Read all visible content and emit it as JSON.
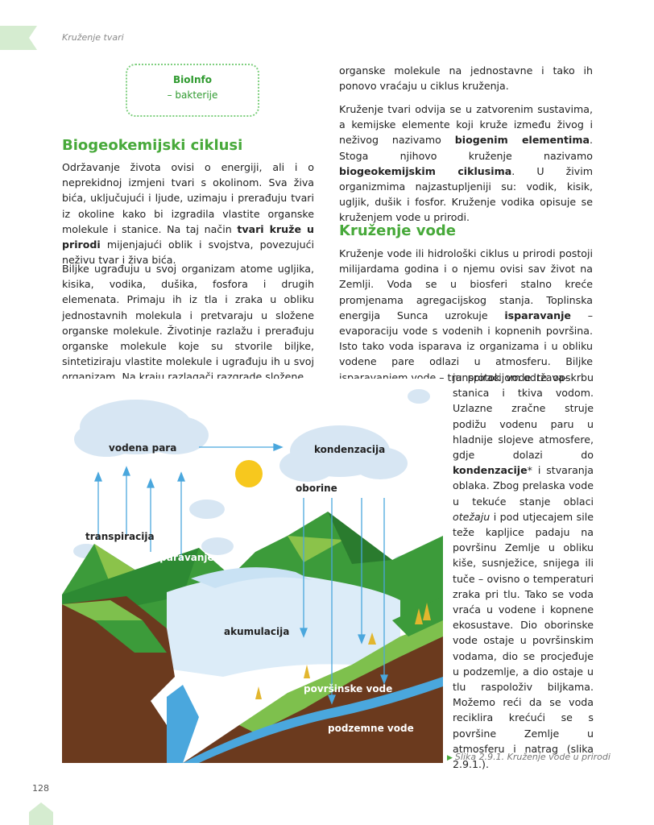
{
  "header": {
    "running_head": "Kruženje tvari"
  },
  "bioinfo": {
    "title": "BioInfo",
    "subtitle": "– bakterije"
  },
  "section1": {
    "title": "Biogeokemijski ciklusi",
    "p1_a": "Održavanje života ovisi o energiji, ali i o neprekidnoj izmjeni tvari s okolinom. Sva živa bića, uključujući i ljude, uzimaju i prerađuju tvari iz okoline kako bi izgradila vlastite organske molekule i stanice. Na taj način ",
    "p1_b": "tvari kruže u prirodi",
    "p1_c": " mijenjajući oblik i svojstva, povezujući neživu tvar i živa bića.",
    "p2": "Biljke ugrađuju u svoj organizam atome ugljika, kisika, vodika, dušika, fosfora i drugih elemenata. Primaju ih iz tla i zraka u obliku jednostavnih molekula i pretvaraju u složene organske molekule. Životinje razlažu i prerađuju organske molekule koje su stvorile biljke, sintetiziraju vlastite molekule i ugrađuju ih u svoj organizam. Na kraju razlagači razgrade složene"
  },
  "right_col": {
    "p0": "organske molekule na jednostavne i tako ih ponovo vraćaju u ciklus kruženja.",
    "p1_a": "Kruženje tvari odvija se u zatvorenim sustavima, a kemijske elemente koji kruže između živog i neživog nazivamo ",
    "p1_b": "biogenim elementima",
    "p1_c": ". Stoga njihovo kruženje nazivamo ",
    "p1_d": "biogeokemijskim ciklusima",
    "p1_e": ". U živim organizmima najzastupljeniji su: vodik, kisik, ugljik, dušik i fosfor. Kruženje vodika opisuje se kruženjem vode u prirodi."
  },
  "section2": {
    "title": "Kruženje vode",
    "p1_a": "Kruženje vode ili hidrološki ciklus u prirodi postoji milijardama godina i o njemu ovisi sav život na Zemlji. Voda se u biosferi stalno kreće promjenama agregacijskog stanja. Toplinska energija Sunca uzrokuje ",
    "p1_b": "isparavanje",
    "p1_c": " – evaporaciju vode s vodenih i kopnenih površina. Isto tako voda isparava iz organizama i u obliku vodene pare odlazi u atmosferu. Biljke isparavanjem vode – transpiracijom održava-",
    "wrap_a": "ju protok vode te opskrbu stanica i tkiva vodom. Uzlazne zračne struje podižu vodenu paru u hladnije slojeve atmosfere, gdje dolazi do ",
    "wrap_b": "kondenzacije",
    "wrap_c": "* i stvaranja oblaka. Zbog prelaska vode u tekuće stanje oblaci ",
    "wrap_d": "otežaju",
    "wrap_e": " i pod utjecajem sile teže kapljice padaju na površinu Zemlje u obliku kiše, susnježice, snijega ili tuče – ovisno o temperaturi zraka pri tlu. Tako se voda vraća u vodene i kopnene ekosustave. Dio oborinske vode ostaje u površinskim vodama, dio se procjeđuje u podzemlje, a dio ostaje u tlu raspoloživ biljkama. Možemo reći da se voda reciklira krećući se s površine Zemlje u atmosferu i natrag (slika 2.9.1.)."
  },
  "figure": {
    "labels": {
      "vapor": "vodena para",
      "condensation": "kondenzacija",
      "precipitation": "oborine",
      "transpiration": "transpiracija",
      "evaporation": "isparavanje",
      "accumulation": "akumulacija",
      "surface_water": "površinske vode",
      "groundwater": "podzemne vode"
    },
    "caption": "Slika 2.9.1. Kruženje vode u prirodi"
  },
  "footer": {
    "page_number": "128"
  },
  "colors": {
    "accent_green": "#47a93a",
    "light_green": "#d5ecd0",
    "water_blue": "#4aa7dd"
  }
}
